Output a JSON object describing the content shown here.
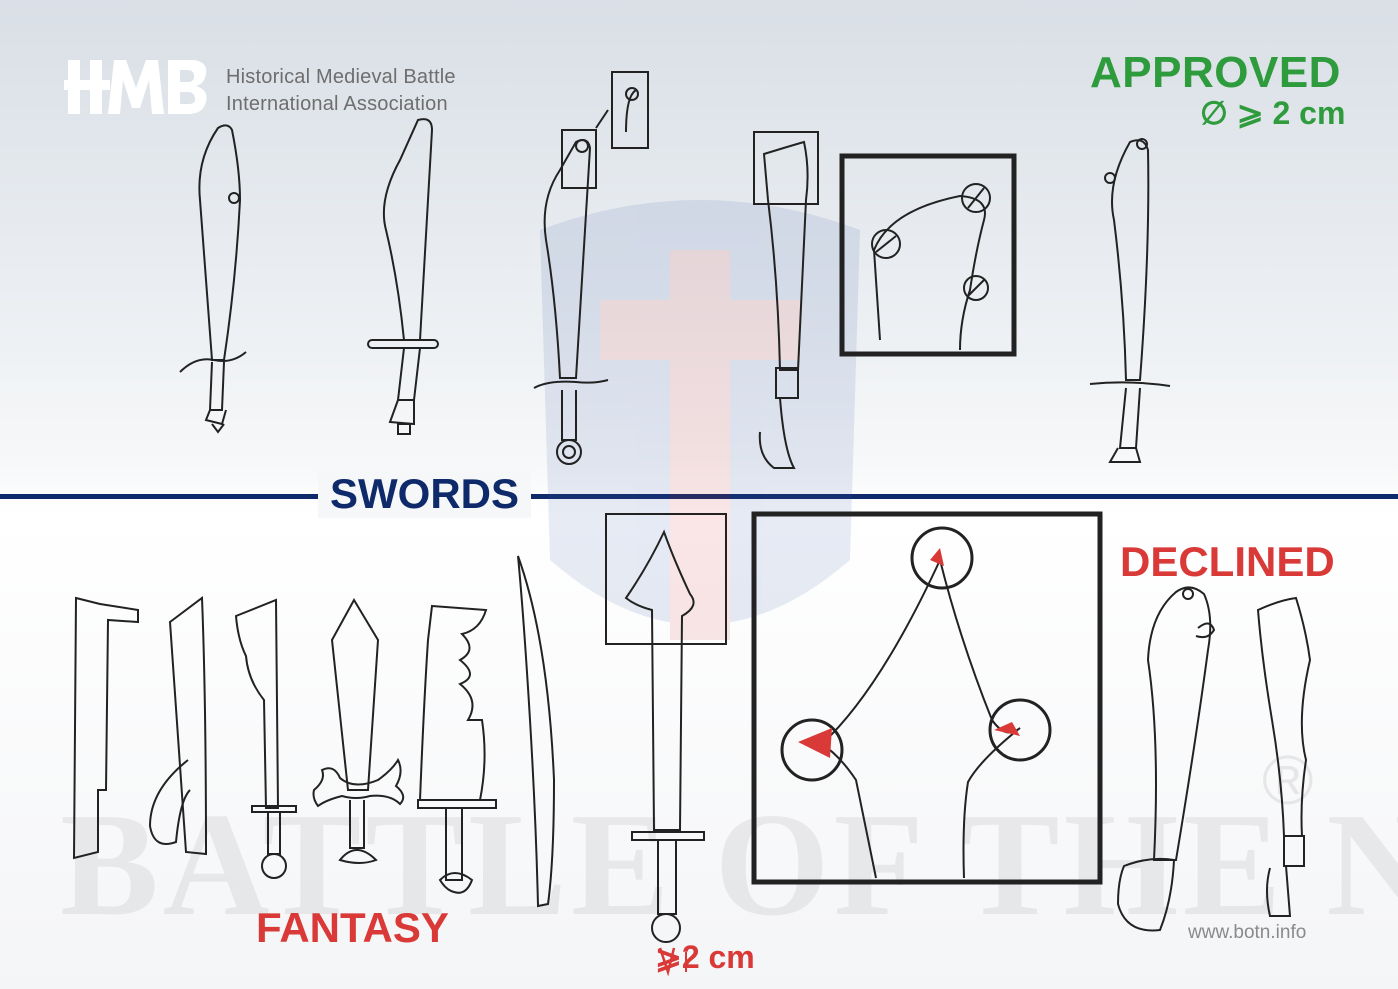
{
  "header": {
    "logo_text": "HMB",
    "org_line1": "Historical Medieval Battle",
    "org_line2": "International Association"
  },
  "approved": {
    "title": "APPROVED",
    "rule": "∅ ⩾ 2 cm"
  },
  "section": {
    "title": "SWORDS"
  },
  "declined": {
    "title": "DECLINED",
    "rule": "⩾2 cm"
  },
  "fantasy": {
    "title": "FANTASY"
  },
  "footer": {
    "watermark": "BATTLE OF THE NATIONS",
    "registered": "®",
    "website": "www.botn.info"
  },
  "colors": {
    "approved": "#2e9b3c",
    "declined": "#d93a37",
    "navy": "#0f2a6b",
    "org_text": "#6e6e6e"
  }
}
